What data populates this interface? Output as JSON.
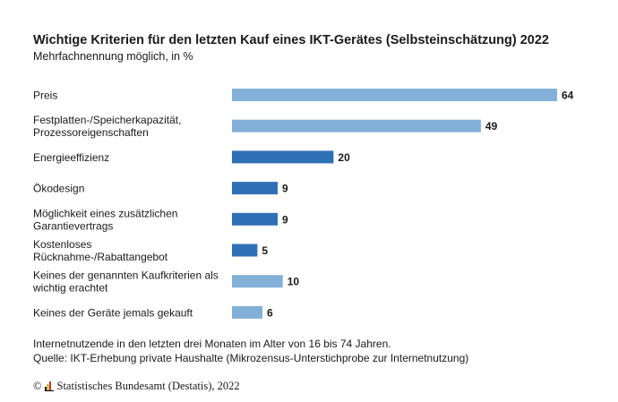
{
  "header": {
    "title": "Wichtige Kriterien für den letzten Kauf eines IKT-Gerätes (Selbsteinschätzung) 2022",
    "subtitle": "Mehrfachnennung möglich, in %"
  },
  "chart_data": {
    "type": "bar",
    "orientation": "horizontal",
    "title": "Wichtige Kriterien für den letzten Kauf eines IKT-Gerätes (Selbsteinschätzung) 2022",
    "subtitle": "Mehrfachnennung möglich, in %",
    "xlabel": "",
    "ylabel": "",
    "xlim": [
      0,
      64
    ],
    "grid": false,
    "categories": [
      [
        "Preis"
      ],
      [
        "Festplatten-/Speicherkapazität,",
        "Prozessoreigenschaften"
      ],
      [
        "Energieeffizienz"
      ],
      [
        "Ökodesign"
      ],
      [
        "Möglichkeit eines zusätzlichen",
        "Garantievertrags"
      ],
      [
        "Kostenloses",
        "Rücknahme-/Rabattangebot"
      ],
      [
        "Keines der genannten Kaufkriterien als",
        "wichtig erachtet"
      ],
      [
        "Keines der Geräte jemals gekauft"
      ]
    ],
    "values": [
      64,
      49,
      20,
      9,
      9,
      5,
      10,
      6
    ],
    "bar_colors": [
      "#82b0d8",
      "#82b0d8",
      "#2f70b5",
      "#2f70b5",
      "#2f70b5",
      "#2f70b5",
      "#82b0d8",
      "#82b0d8"
    ]
  },
  "footer": {
    "note_line1": "Internetnutzende in den letzten drei Monaten im Alter von 16 bis 74 Jahren.",
    "note_line2": "Quelle: IKT-Erhebung private Haushalte (Mikrozensus-Unterstichprobe zur Internetnutzung)",
    "copyright_symbol": "©",
    "copyright_text": "Statistisches Bundesamt (Destatis), 2022"
  }
}
